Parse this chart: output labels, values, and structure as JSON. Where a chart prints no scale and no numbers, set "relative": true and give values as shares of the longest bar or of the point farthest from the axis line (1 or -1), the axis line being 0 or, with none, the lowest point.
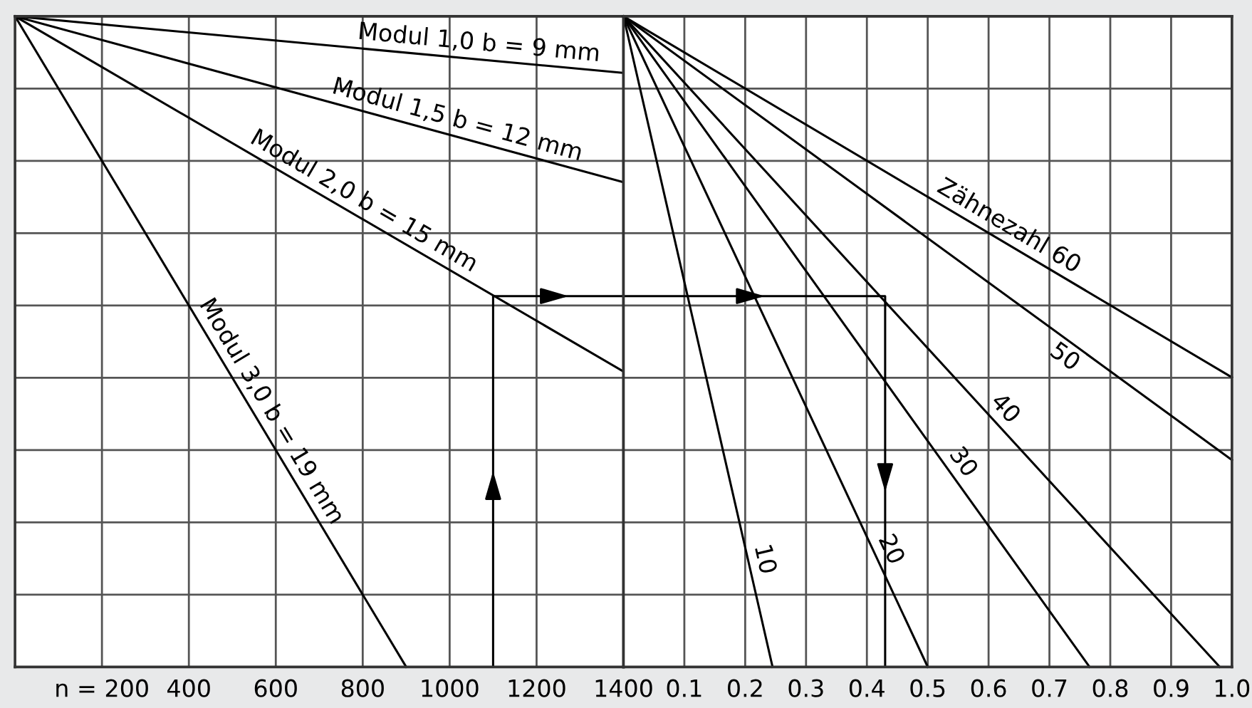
{
  "chart_data": [
    {
      "type": "line",
      "relative": true,
      "xlim": [
        0,
        1400
      ],
      "xticks": [
        {
          "value": 200,
          "label": "n = 200"
        },
        400,
        600,
        800,
        1000,
        1200,
        1400
      ],
      "tick_labels": "x",
      "grid": true,
      "legend": false,
      "marker": "none",
      "line_style": "solid",
      "series": [
        {
          "name": "Modul 1,0 b = 9 mm",
          "color": "#000000",
          "x": [
            0,
            1400
          ],
          "values": [
            1,
            0.913
          ]
        },
        {
          "name": "Modul 1,5 b = 12 mm",
          "color": "#000000",
          "x": [
            0,
            1400
          ],
          "values": [
            1,
            0.745
          ]
        },
        {
          "name": "Modul 2,0 b = 15 mm",
          "color": "#000000",
          "x": [
            0,
            1400
          ],
          "values": [
            1,
            0.454
          ]
        },
        {
          "name": "Modul 3,0 b = 19 mm",
          "color": "#000000",
          "x": [
            0,
            900
          ],
          "values": [
            1,
            0
          ]
        },
        {
          "color": "#000000",
          "x": [
            1100,
            1100,
            1400
          ],
          "values": [
            0,
            0.57,
            0.57
          ]
        }
      ]
    },
    {
      "type": "line",
      "relative": true,
      "xlim": [
        0,
        1
      ],
      "xticks": [
        0.1,
        0.2,
        0.3,
        0.4,
        0.5,
        0.6,
        0.7,
        0.8,
        0.9,
        {
          "value": 1,
          "label": "1.0"
        }
      ],
      "tick_labels": "x",
      "grid": true,
      "legend": false,
      "marker": "none",
      "line_style": "solid",
      "series": [
        {
          "name": "10",
          "color": "#000000",
          "x": [
            0,
            0.245
          ],
          "values": [
            1,
            0
          ]
        },
        {
          "name": "20",
          "color": "#000000",
          "x": [
            0,
            0.5
          ],
          "values": [
            1,
            0
          ]
        },
        {
          "name": "30",
          "color": "#000000",
          "x": [
            0,
            0.766
          ],
          "values": [
            1,
            0
          ]
        },
        {
          "name": "40",
          "color": "#000000",
          "x": [
            0,
            0.98
          ],
          "values": [
            1,
            0
          ]
        },
        {
          "name": "50",
          "color": "#000000",
          "x": [
            0,
            1
          ],
          "values": [
            1,
            0.318
          ]
        },
        {
          "name": "Zähnezahl 60",
          "color": "#000000",
          "x": [
            0,
            1
          ],
          "values": [
            1,
            0.445
          ]
        },
        {
          "color": "#000000",
          "x": [
            0,
            0.43,
            0.43
          ],
          "values": [
            0.57,
            0.57,
            0
          ]
        }
      ]
    }
  ]
}
